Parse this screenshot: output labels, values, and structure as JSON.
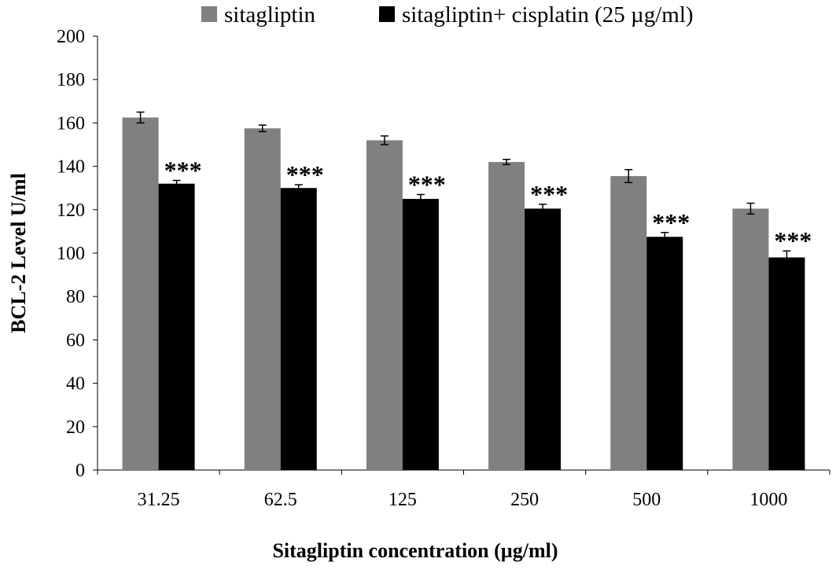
{
  "chart_data": {
    "type": "bar",
    "title": "",
    "xlabel": "Sitagliptin concentration (µg/ml)",
    "ylabel": "BCL-2 Level U/ml",
    "ylim": [
      0,
      200
    ],
    "yticks": [
      "0",
      "20",
      "40",
      "60",
      "80",
      "100",
      "120",
      "140",
      "160",
      "180",
      "200"
    ],
    "categories": [
      "31.25",
      "62.5",
      "125",
      "250",
      "500",
      "1000"
    ],
    "series": [
      {
        "name": "sitagliptin",
        "color": "#808080",
        "values": [
          162.5,
          157.5,
          152,
          142,
          135.5,
          120.5
        ],
        "errors": [
          2.5,
          1.5,
          2,
          1.2,
          3,
          2.5
        ]
      },
      {
        "name": "sitagliptin+ cisplatin (25 µg/ml)",
        "color": "#000000",
        "values": [
          132,
          130,
          125,
          120.5,
          107.5,
          98
        ],
        "errors": [
          1.5,
          1.5,
          2,
          2,
          2,
          3
        ]
      }
    ],
    "annotations": [
      "***",
      "***",
      "***",
      "***",
      "***",
      "***"
    ],
    "legend_position": "top",
    "grid": false
  }
}
